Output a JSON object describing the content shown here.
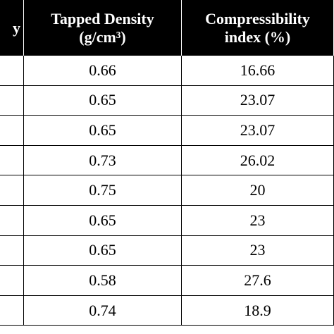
{
  "table": {
    "header": [
      [
        "y"
      ],
      [
        "Tapped Density",
        "(g/cm³)"
      ],
      [
        "Compressibility",
        "index (%)"
      ]
    ],
    "rows": [
      [
        "0.66",
        "16.66"
      ],
      [
        "0.65",
        "23.07"
      ],
      [
        "0.65",
        "23.07"
      ],
      [
        "0.73",
        "26.02"
      ],
      [
        "0.75",
        "20"
      ],
      [
        "0.65",
        "23"
      ],
      [
        "0.65",
        "23"
      ],
      [
        "0.58",
        "27.6"
      ],
      [
        "0.74",
        "18.9"
      ]
    ]
  }
}
